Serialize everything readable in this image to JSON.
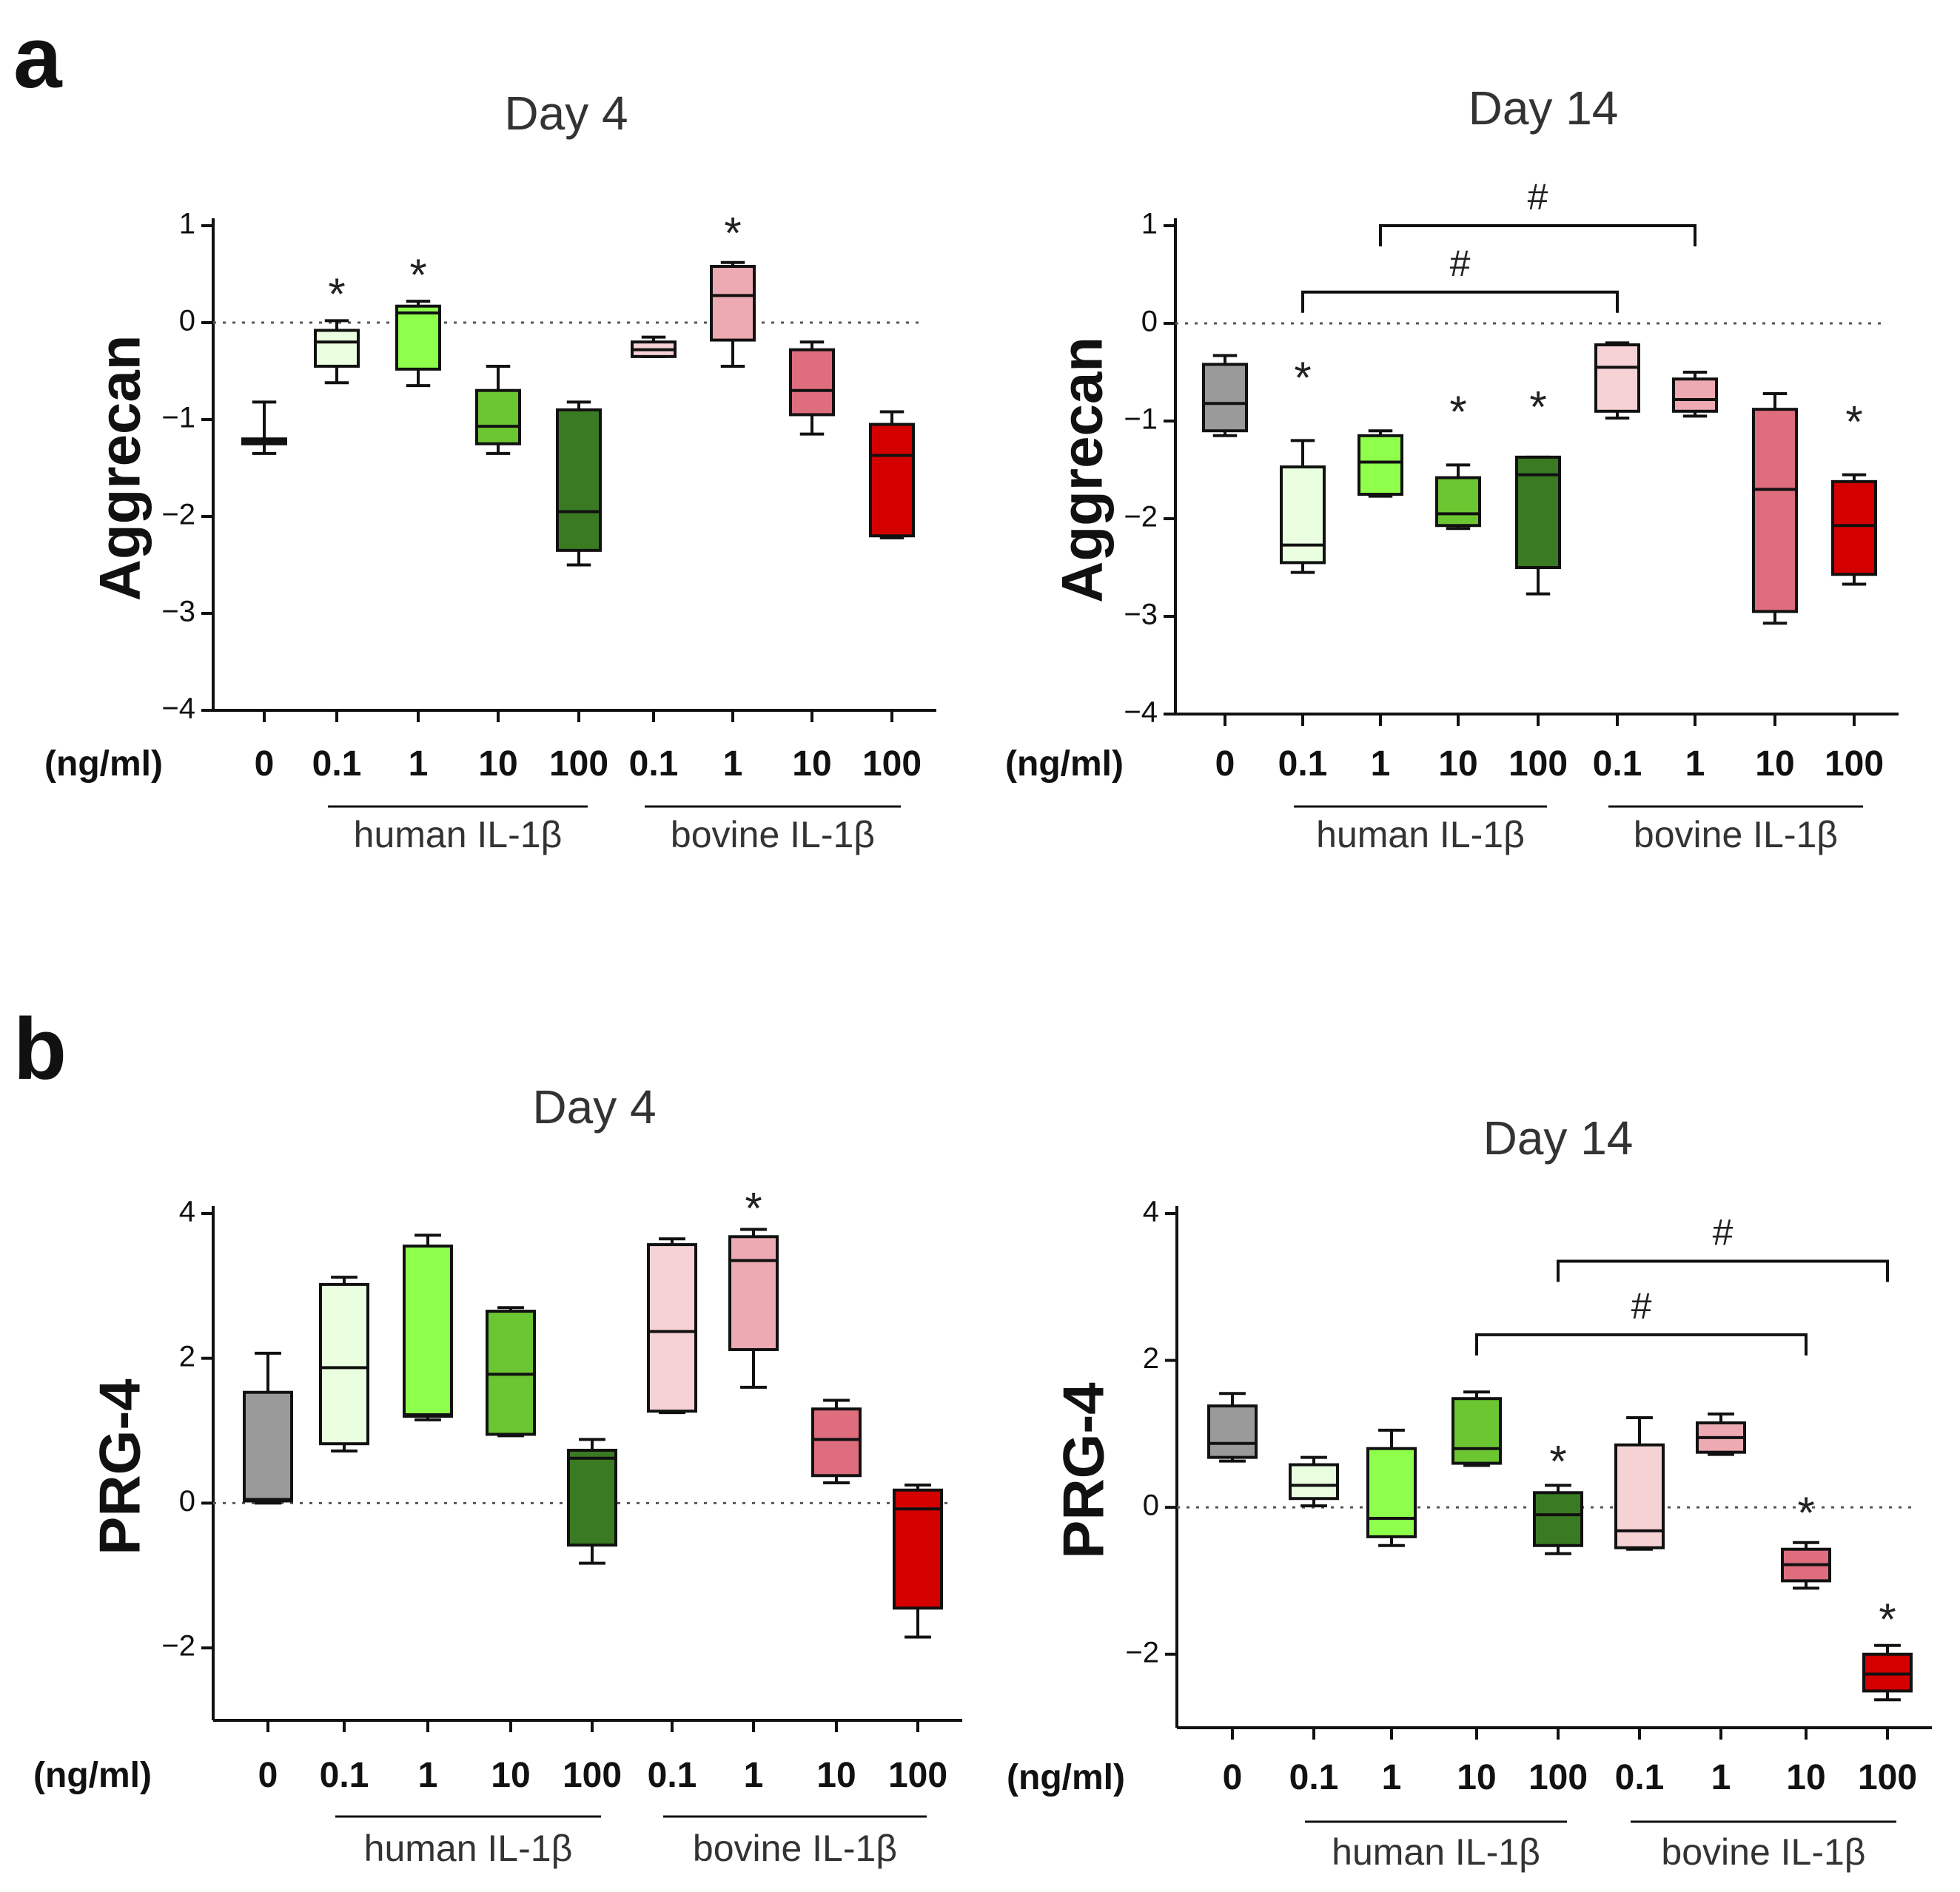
{
  "panel_labels": [
    "a",
    "b"
  ],
  "colors": {
    "0": "#9a9a9a",
    "h0.1": "#eaffe0",
    "h1": "#8eff4a",
    "h10": "#6cc631",
    "h100": "#3a7a22",
    "b0.1": "#f6d2d5",
    "b1": "#eeaab3",
    "b10": "#de6d7e",
    "b100": "#d40000"
  },
  "chart_data": [
    {
      "type": "box",
      "panel": "a",
      "title": "Day 4",
      "ylabel": "Aggrecan",
      "ylim": [
        -4,
        1
      ],
      "yticks": [
        1,
        0,
        -1,
        -2,
        -3,
        -4
      ],
      "ytick_labels": [
        "1",
        "0",
        "−1",
        "−2",
        "−3",
        "−4"
      ],
      "unit_label": "(ng/ml)",
      "categories": [
        "0",
        "0.1",
        "1",
        "10",
        "100",
        "0.1",
        "1",
        "10",
        "100"
      ],
      "color_keys": [
        "0",
        "h0.1",
        "h1",
        "h10",
        "h100",
        "b0.1",
        "b1",
        "b10",
        "b100"
      ],
      "groups": [
        {
          "label": "human IL-1β",
          "from": 1,
          "to": 4
        },
        {
          "label": "bovine IL-1β",
          "from": 5,
          "to": 8
        }
      ],
      "reference_line": 0,
      "boxes": [
        {
          "min": -1.35,
          "q1": -1.25,
          "median": -1.22,
          "q3": -1.2,
          "max": -0.82
        },
        {
          "min": -0.62,
          "q1": -0.45,
          "median": -0.2,
          "q3": -0.08,
          "max": 0.02
        },
        {
          "min": -0.65,
          "q1": -0.48,
          "median": 0.1,
          "q3": 0.17,
          "max": 0.22
        },
        {
          "min": -1.35,
          "q1": -1.25,
          "median": -1.07,
          "q3": -0.7,
          "max": -0.45
        },
        {
          "min": -2.5,
          "q1": -2.35,
          "median": -1.95,
          "q3": -0.9,
          "max": -0.82
        },
        {
          "min": -0.35,
          "q1": -0.35,
          "median": -0.28,
          "q3": -0.2,
          "max": -0.15
        },
        {
          "min": -0.45,
          "q1": -0.18,
          "median": 0.28,
          "q3": 0.58,
          "max": 0.62
        },
        {
          "min": -1.15,
          "q1": -0.95,
          "median": -0.7,
          "q3": -0.28,
          "max": -0.2
        },
        {
          "min": -2.22,
          "q1": -2.2,
          "median": -1.37,
          "q3": -1.05,
          "max": -0.92
        }
      ],
      "annotations": [
        {
          "label": "*",
          "index": 1,
          "y": 0.35
        },
        {
          "label": "*",
          "index": 2,
          "y": 0.55
        },
        {
          "label": "*",
          "index": 6,
          "y": 0.98
        }
      ],
      "brackets": []
    },
    {
      "type": "box",
      "panel": "a",
      "title": "Day 14",
      "ylabel": "Aggrecan",
      "ylim": [
        -4,
        1
      ],
      "yticks": [
        1,
        0,
        -1,
        -2,
        -3,
        -4
      ],
      "ytick_labels": [
        "1",
        "0",
        "−1",
        "−2",
        "−3",
        "−4"
      ],
      "unit_label": "(ng/ml)",
      "categories": [
        "0",
        "0.1",
        "1",
        "10",
        "100",
        "0.1",
        "1",
        "10",
        "100"
      ],
      "color_keys": [
        "0",
        "h0.1",
        "h1",
        "h10",
        "h100",
        "b0.1",
        "b1",
        "b10",
        "b100"
      ],
      "groups": [
        {
          "label": "human IL-1β",
          "from": 1,
          "to": 4
        },
        {
          "label": "bovine IL-1β",
          "from": 5,
          "to": 8
        }
      ],
      "reference_line": 0,
      "boxes": [
        {
          "min": -1.15,
          "q1": -1.1,
          "median": -0.82,
          "q3": -0.42,
          "max": -0.33
        },
        {
          "min": -2.55,
          "q1": -2.45,
          "median": -2.27,
          "q3": -1.47,
          "max": -1.2
        },
        {
          "min": -1.77,
          "q1": -1.75,
          "median": -1.42,
          "q3": -1.15,
          "max": -1.1
        },
        {
          "min": -2.1,
          "q1": -2.07,
          "median": -1.95,
          "q3": -1.58,
          "max": -1.45
        },
        {
          "min": -2.77,
          "q1": -2.5,
          "median": -1.55,
          "q3": -1.37,
          "max": -1.37
        },
        {
          "min": -0.97,
          "q1": -0.9,
          "median": -0.45,
          "q3": -0.22,
          "max": -0.2
        },
        {
          "min": -0.95,
          "q1": -0.9,
          "median": -0.78,
          "q3": -0.57,
          "max": -0.5
        },
        {
          "min": -3.07,
          "q1": -2.95,
          "median": -1.7,
          "q3": -0.88,
          "max": -0.72
        },
        {
          "min": -2.67,
          "q1": -2.57,
          "median": -2.07,
          "q3": -1.62,
          "max": -1.55
        }
      ],
      "annotations": [
        {
          "label": "*",
          "index": 1,
          "y": -0.5
        },
        {
          "label": "*",
          "index": 3,
          "y": -0.85
        },
        {
          "label": "*",
          "index": 4,
          "y": -0.8
        },
        {
          "label": "*",
          "index": 8,
          "y": -0.95
        }
      ],
      "brackets": [
        {
          "from": 1,
          "to": 5,
          "y": 0.32,
          "label": "#"
        },
        {
          "from": 2,
          "to": 6,
          "y": 1.0,
          "label": "#"
        }
      ]
    },
    {
      "type": "box",
      "panel": "b",
      "title": "Day 4",
      "ylabel": "PRG-4",
      "ylim": [
        -3,
        4
      ],
      "yticks": [
        4,
        2,
        0,
        -2
      ],
      "ytick_labels": [
        "4",
        "2",
        "0",
        "−2"
      ],
      "unit_label": "(ng/ml)",
      "categories": [
        "0",
        "0.1",
        "1",
        "10",
        "100",
        "0.1",
        "1",
        "10",
        "100"
      ],
      "color_keys": [
        "0",
        "h0.1",
        "h1",
        "h10",
        "h100",
        "b0.1",
        "b1",
        "b10",
        "b100"
      ],
      "groups": [
        {
          "label": "human IL-1β",
          "from": 1,
          "to": 4
        },
        {
          "label": "bovine IL-1β",
          "from": 5,
          "to": 8
        }
      ],
      "reference_line": 0,
      "boxes": [
        {
          "min": 0.0,
          "q1": 0.03,
          "median": 0.05,
          "q3": 1.53,
          "max": 2.07
        },
        {
          "min": 0.72,
          "q1": 0.82,
          "median": 1.87,
          "q3": 3.02,
          "max": 3.12
        },
        {
          "min": 1.15,
          "q1": 1.2,
          "median": 1.22,
          "q3": 3.55,
          "max": 3.7
        },
        {
          "min": 0.93,
          "q1": 0.95,
          "median": 1.78,
          "q3": 2.65,
          "max": 2.7
        },
        {
          "min": -0.83,
          "q1": -0.58,
          "median": 0.62,
          "q3": 0.73,
          "max": 0.88
        },
        {
          "min": 1.25,
          "q1": 1.27,
          "median": 2.37,
          "q3": 3.57,
          "max": 3.65
        },
        {
          "min": 1.6,
          "q1": 2.12,
          "median": 3.35,
          "q3": 3.68,
          "max": 3.78
        },
        {
          "min": 0.28,
          "q1": 0.38,
          "median": 0.88,
          "q3": 1.3,
          "max": 1.42
        },
        {
          "min": -1.85,
          "q1": -1.45,
          "median": -0.08,
          "q3": 0.18,
          "max": 0.25
        }
      ],
      "annotations": [
        {
          "label": "*",
          "index": 6,
          "y": 4.15
        }
      ],
      "brackets": []
    },
    {
      "type": "box",
      "panel": "b",
      "title": "Day 14",
      "ylabel": "PRG-4",
      "ylim": [
        -3,
        4
      ],
      "yticks": [
        4,
        2,
        0,
        -2
      ],
      "ytick_labels": [
        "4",
        "2",
        "0",
        "−2"
      ],
      "unit_label": "(ng/ml)",
      "categories": [
        "0",
        "0.1",
        "1",
        "10",
        "100",
        "0.1",
        "1",
        "10",
        "100"
      ],
      "color_keys": [
        "0",
        "h0.1",
        "h1",
        "h10",
        "h100",
        "b0.1",
        "b1",
        "b10",
        "b100"
      ],
      "groups": [
        {
          "label": "human IL-1β",
          "from": 1,
          "to": 4
        },
        {
          "label": "bovine IL-1β",
          "from": 5,
          "to": 8
        }
      ],
      "reference_line": 0,
      "boxes": [
        {
          "min": 0.63,
          "q1": 0.68,
          "median": 0.87,
          "q3": 1.38,
          "max": 1.55
        },
        {
          "min": 0.02,
          "q1": 0.12,
          "median": 0.3,
          "q3": 0.58,
          "max": 0.68
        },
        {
          "min": -0.52,
          "q1": -0.4,
          "median": -0.15,
          "q3": 0.8,
          "max": 1.05
        },
        {
          "min": 0.57,
          "q1": 0.6,
          "median": 0.8,
          "q3": 1.48,
          "max": 1.57
        },
        {
          "min": -0.63,
          "q1": -0.52,
          "median": -0.1,
          "q3": 0.2,
          "max": 0.3
        },
        {
          "min": -0.57,
          "q1": -0.55,
          "median": -0.32,
          "q3": 0.85,
          "max": 1.22
        },
        {
          "min": 0.72,
          "q1": 0.75,
          "median": 0.95,
          "q3": 1.15,
          "max": 1.27
        },
        {
          "min": -1.1,
          "q1": -1.0,
          "median": -0.78,
          "q3": -0.57,
          "max": -0.48
        },
        {
          "min": -2.62,
          "q1": -2.5,
          "median": -2.27,
          "q3": -2.0,
          "max": -1.88
        }
      ],
      "annotations": [
        {
          "label": "*",
          "index": 4,
          "y": 0.7
        },
        {
          "label": "*",
          "index": 7,
          "y": 0.0
        },
        {
          "label": "*",
          "index": 8,
          "y": -1.45
        }
      ],
      "brackets": [
        {
          "from": 3,
          "to": 7,
          "y": 2.35,
          "label": "#"
        },
        {
          "from": 4,
          "to": 8,
          "y": 3.35,
          "label": "#"
        }
      ]
    }
  ]
}
